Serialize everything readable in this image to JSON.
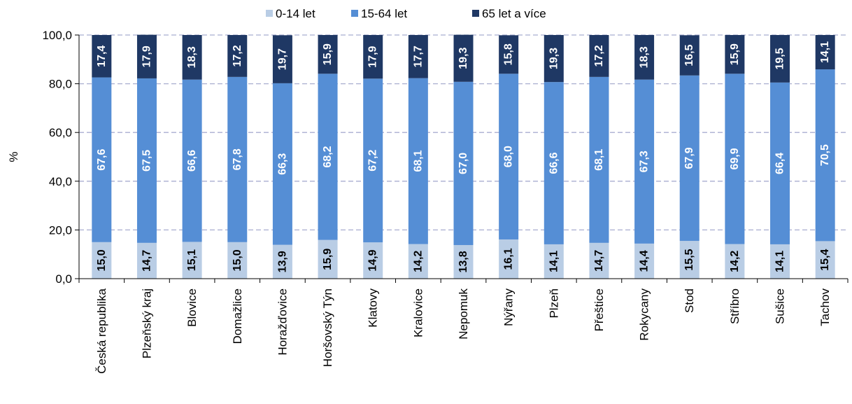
{
  "chart_data": {
    "type": "bar",
    "stacked": true,
    "orientation": "vertical",
    "ylabel": "%",
    "ylim": [
      0,
      100
    ],
    "yticks": [
      "0,0",
      "20,0",
      "40,0",
      "60,0",
      "80,0",
      "100,0"
    ],
    "grid": true,
    "legend_position": "top",
    "categories": [
      "Česká republika",
      "Plzeňský kraj",
      "Blovice",
      "Domažlice",
      "Horažďovice",
      "Horšovský Týn",
      "Klatovy",
      "Kralovice",
      "Nepomuk",
      "Nýřany",
      "Plzeň",
      "Přeštice",
      "Rokycany",
      "Stod",
      "Stříbro",
      "Sušice",
      "Tachov"
    ],
    "series": [
      {
        "name": "0-14 let",
        "color": "#b9cde5",
        "label_color": "#000000",
        "values": [
          15.0,
          14.7,
          15.1,
          15.0,
          13.9,
          15.9,
          14.9,
          14.2,
          13.8,
          16.1,
          14.1,
          14.7,
          14.4,
          15.5,
          14.2,
          14.1,
          15.4
        ],
        "labels": [
          "15,0",
          "14,7",
          "15,1",
          "15,0",
          "13,9",
          "15,9",
          "14,9",
          "14,2",
          "13,8",
          "16,1",
          "14,1",
          "14,7",
          "14,4",
          "15,5",
          "14,2",
          "14,1",
          "15,4"
        ]
      },
      {
        "name": "15-64 let",
        "color": "#558ed5",
        "label_color": "#ffffff",
        "values": [
          67.6,
          67.5,
          66.6,
          67.8,
          66.3,
          68.2,
          67.2,
          68.1,
          67.0,
          68.0,
          66.6,
          68.1,
          67.3,
          67.9,
          69.9,
          66.4,
          70.5
        ],
        "labels": [
          "67,6",
          "67,5",
          "66,6",
          "67,8",
          "66,3",
          "68,2",
          "67,2",
          "68,1",
          "67,0",
          "68,0",
          "66,6",
          "68,1",
          "67,3",
          "67,9",
          "69,9",
          "66,4",
          "70,5"
        ]
      },
      {
        "name": "65 let a více",
        "color": "#1f3864",
        "label_color": "#ffffff",
        "values": [
          17.4,
          17.9,
          18.3,
          17.2,
          19.7,
          15.9,
          17.9,
          17.7,
          19.3,
          15.8,
          19.3,
          17.2,
          18.3,
          16.5,
          15.9,
          19.5,
          14.1
        ],
        "labels": [
          "17,4",
          "17,9",
          "18,3",
          "17,2",
          "19,7",
          "15,9",
          "17,9",
          "17,7",
          "19,3",
          "15,8",
          "19,3",
          "17,2",
          "18,3",
          "16,5",
          "15,9",
          "19,5",
          "14,1"
        ]
      }
    ]
  }
}
